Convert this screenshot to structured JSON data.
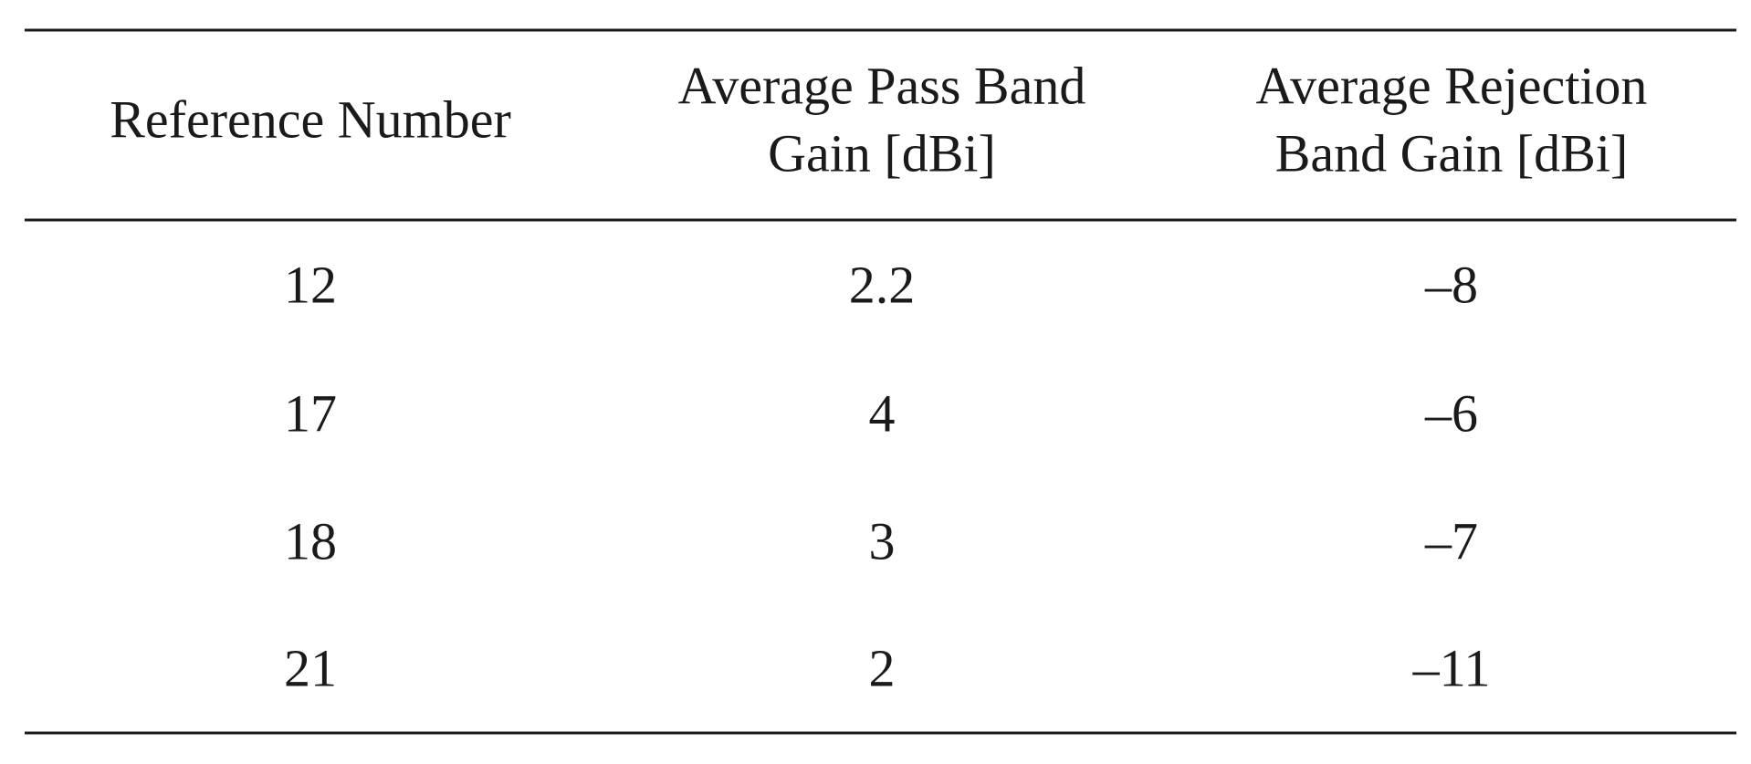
{
  "table": {
    "header": [
      [
        "Reference Number"
      ],
      [
        "Average Pass Band",
        "Gain [dBi]"
      ],
      [
        "Average Rejection",
        "Band Gain [dBi]"
      ]
    ],
    "rows": [
      [
        "12",
        "2.2",
        "–8"
      ],
      [
        "17",
        "4",
        "–6"
      ],
      [
        "18",
        "3",
        "–7"
      ],
      [
        "21",
        "2",
        "–11"
      ]
    ]
  }
}
